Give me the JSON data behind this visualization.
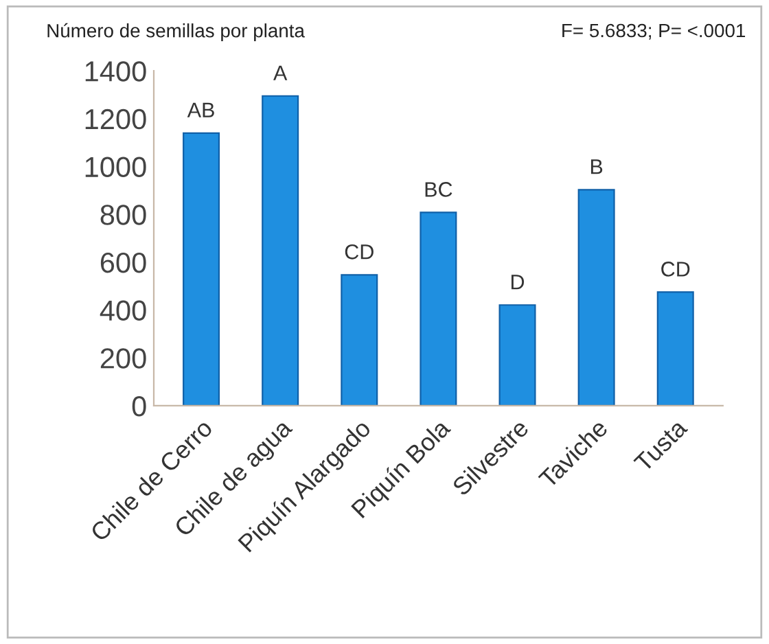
{
  "chart_data": {
    "type": "bar",
    "title": "Número de semillas por planta",
    "categories": [
      "Chile de Cerro",
      "Chile de agua",
      "Piquín Alargado",
      "Piquín Bola",
      "Silvestre",
      "Taviche",
      "Tusta"
    ],
    "values": [
      1140,
      1295,
      547,
      808,
      421,
      903,
      475
    ],
    "color": "#1f8fe0",
    "ylim": [
      0,
      1400
    ],
    "yticks": [
      0,
      200,
      400,
      600,
      800,
      1000,
      1200,
      1400
    ],
    "grid": false,
    "annotations": [
      "F= 5.6833; P= <.0001",
      {
        "text": "AB",
        "x": "Chile de Cerro",
        "y": 1140
      },
      {
        "text": "A",
        "x": "Chile de agua",
        "y": 1295
      },
      {
        "text": "CD",
        "x": "Piquín Alargado",
        "y": 547
      },
      {
        "text": "BC",
        "x": "Piquín Bola",
        "y": 808
      },
      {
        "text": "D",
        "x": "Silvestre",
        "y": 421
      },
      {
        "text": "B",
        "x": "Taviche",
        "y": 903
      },
      {
        "text": "CD",
        "x": "Tusta",
        "y": 475
      }
    ]
  }
}
